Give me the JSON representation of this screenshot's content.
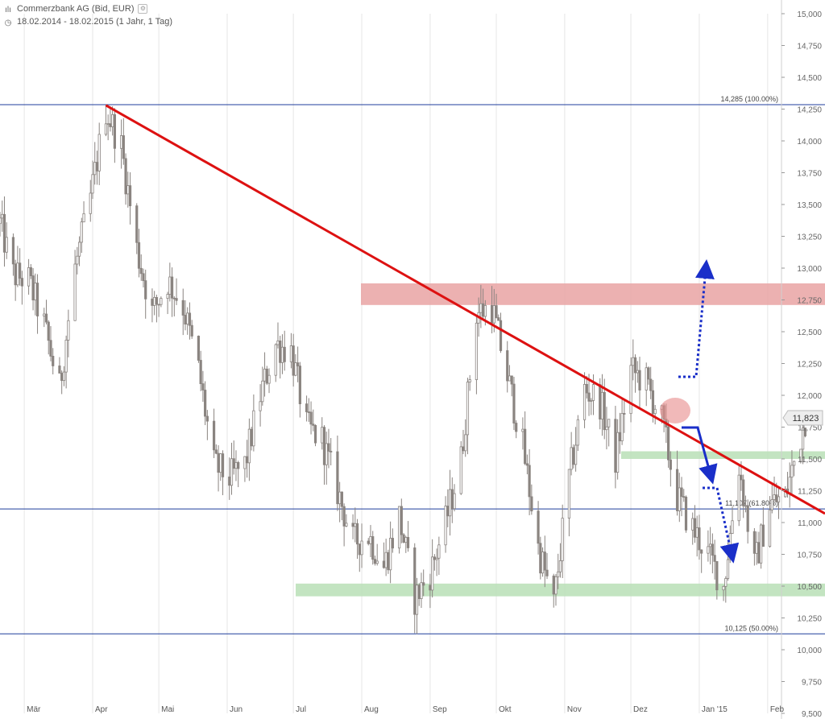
{
  "header": {
    "title": "Commerzbank AG (Bid, EUR)",
    "period": "18.02.2014 - 18.02.2015 (1 Jahr, 1 Tag)",
    "title_icon": "candlestick-icon",
    "period_icon": "clock-icon",
    "settings_icon": "settings-icon"
  },
  "price_badge": "11,823",
  "colors": {
    "candle": "#8a8480",
    "trendline": "#dd1111",
    "fib_line": "#1f3d9c",
    "resistance_zone": "#e9a3a3",
    "support_zone": "#b8dfb6",
    "arrow": "#1a2fc9",
    "grid": "#e6e6e6"
  },
  "chart_data": {
    "type": "candlestick",
    "title": "Commerzbank AG (Bid, EUR)",
    "xlabel": "",
    "ylabel": "",
    "ylim": [
      9.5,
      15.0
    ],
    "y_ticks": [
      "15,000",
      "14,750",
      "14,500",
      "14,250",
      "14,000",
      "13,750",
      "13,500",
      "13,250",
      "13,000",
      "12,750",
      "12,500",
      "12,250",
      "12,000",
      "11,750",
      "11,500",
      "11,250",
      "11,000",
      "10,750",
      "10,500",
      "10,250",
      "10,000",
      "9,750",
      "9,500"
    ],
    "x_ticks": [
      "Mär",
      "Apr",
      "Mai",
      "Jun",
      "Jul",
      "Aug",
      "Sep",
      "Okt",
      "Nov",
      "Dez",
      "Jan '15",
      "Feb"
    ],
    "grid": "vertical",
    "price_anchors": [
      {
        "date": "18.02.2014",
        "value": 13.35
      },
      {
        "date": "24.02.2014",
        "value": 12.95
      },
      {
        "date": "03.03.2014",
        "value": 12.9
      },
      {
        "date": "10.03.2014",
        "value": 12.55
      },
      {
        "date": "17.03.2014",
        "value": 12.05
      },
      {
        "date": "24.03.2014",
        "value": 13.0
      },
      {
        "date": "31.03.2014",
        "value": 13.55
      },
      {
        "date": "07.04.2014",
        "value": 14.25
      },
      {
        "date": "14.04.2014",
        "value": 13.95
      },
      {
        "date": "21.04.2014",
        "value": 13.15
      },
      {
        "date": "28.04.2014",
        "value": 12.65
      },
      {
        "date": "05.05.2014",
        "value": 12.9
      },
      {
        "date": "12.05.2014",
        "value": 12.7
      },
      {
        "date": "19.05.2014",
        "value": 12.2
      },
      {
        "date": "26.05.2014",
        "value": 11.45
      },
      {
        "date": "02.06.2014",
        "value": 11.35
      },
      {
        "date": "09.06.2014",
        "value": 11.45
      },
      {
        "date": "16.06.2014",
        "value": 12.0
      },
      {
        "date": "23.06.2014",
        "value": 12.4
      },
      {
        "date": "30.06.2014",
        "value": 12.35
      },
      {
        "date": "07.07.2014",
        "value": 11.75
      },
      {
        "date": "14.07.2014",
        "value": 11.65
      },
      {
        "date": "21.07.2014",
        "value": 11.25
      },
      {
        "date": "28.07.2014",
        "value": 10.85
      },
      {
        "date": "04.08.2014",
        "value": 10.9
      },
      {
        "date": "11.08.2014",
        "value": 10.65
      },
      {
        "date": "18.08.2014",
        "value": 11.05
      },
      {
        "date": "25.08.2014",
        "value": 10.4
      },
      {
        "date": "01.09.2014",
        "value": 10.6
      },
      {
        "date": "08.09.2014",
        "value": 11.0
      },
      {
        "date": "15.09.2014",
        "value": 11.5
      },
      {
        "date": "22.09.2014",
        "value": 12.65
      },
      {
        "date": "29.09.2014",
        "value": 12.7
      },
      {
        "date": "06.10.2014",
        "value": 12.15
      },
      {
        "date": "13.10.2014",
        "value": 11.6
      },
      {
        "date": "20.10.2014",
        "value": 10.8
      },
      {
        "date": "27.10.2014",
        "value": 10.35
      },
      {
        "date": "03.11.2014",
        "value": 11.35
      },
      {
        "date": "10.11.2014",
        "value": 12.05
      },
      {
        "date": "17.11.2014",
        "value": 11.95
      },
      {
        "date": "24.11.2014",
        "value": 11.5
      },
      {
        "date": "01.12.2014",
        "value": 12.2
      },
      {
        "date": "08.12.2014",
        "value": 12.1
      },
      {
        "date": "15.12.2014",
        "value": 11.8
      },
      {
        "date": "22.12.2014",
        "value": 11.2
      },
      {
        "date": "29.12.2014",
        "value": 10.95
      },
      {
        "date": "05.01.2015",
        "value": 10.75
      },
      {
        "date": "12.01.2015",
        "value": 10.5
      },
      {
        "date": "19.01.2015",
        "value": 11.45
      },
      {
        "date": "26.01.2015",
        "value": 10.65
      },
      {
        "date": "02.02.2015",
        "value": 11.15
      },
      {
        "date": "09.02.2015",
        "value": 11.2
      },
      {
        "date": "18.02.2015",
        "value": 11.82
      }
    ],
    "horizontal_levels": [
      {
        "label": "14,285 (100.00%)",
        "value": 14.285
      },
      {
        "label": "11,107 (61.80%)",
        "value": 11.107
      },
      {
        "label": "10,125 (50.00%)",
        "value": 10.125
      }
    ],
    "zones": [
      {
        "kind": "resistance",
        "from": 12.71,
        "to": 12.88
      },
      {
        "kind": "support",
        "from": 11.5,
        "to": 11.56
      },
      {
        "kind": "support",
        "from": 10.42,
        "to": 10.52
      }
    ],
    "trendline": [
      {
        "date": "07.04.2014",
        "value": 14.28
      },
      {
        "date": "27.02.2015",
        "value": 11.07
      }
    ]
  }
}
